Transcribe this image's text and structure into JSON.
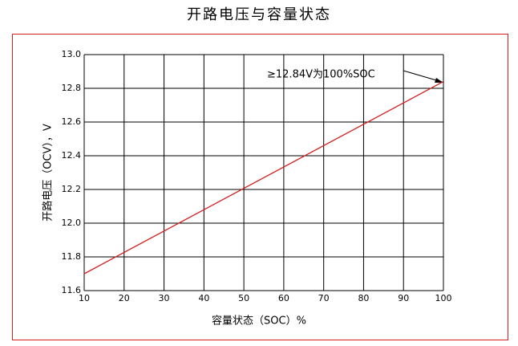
{
  "chart_data": {
    "type": "line",
    "title": "开路电压与容量状态",
    "x_label": "容量状态（SOC）%",
    "y_label": "开路电压（OCV），V",
    "x": [
      10,
      100
    ],
    "values": [
      11.7,
      12.84
    ],
    "color": "#d42020",
    "xlim": [
      10,
      100
    ],
    "xticks": [
      10,
      20,
      30,
      40,
      50,
      60,
      70,
      80,
      90,
      100
    ],
    "ylim": [
      11.6,
      13.0
    ],
    "yticks": [
      11.6,
      11.8,
      {
        "value": 12,
        "label": "12.0"
      },
      12.2,
      12.4,
      12.6,
      12.8,
      {
        "value": 13,
        "label": "13.0"
      }
    ],
    "grid": true,
    "annotation": "≥12.84V为100%SOC"
  }
}
